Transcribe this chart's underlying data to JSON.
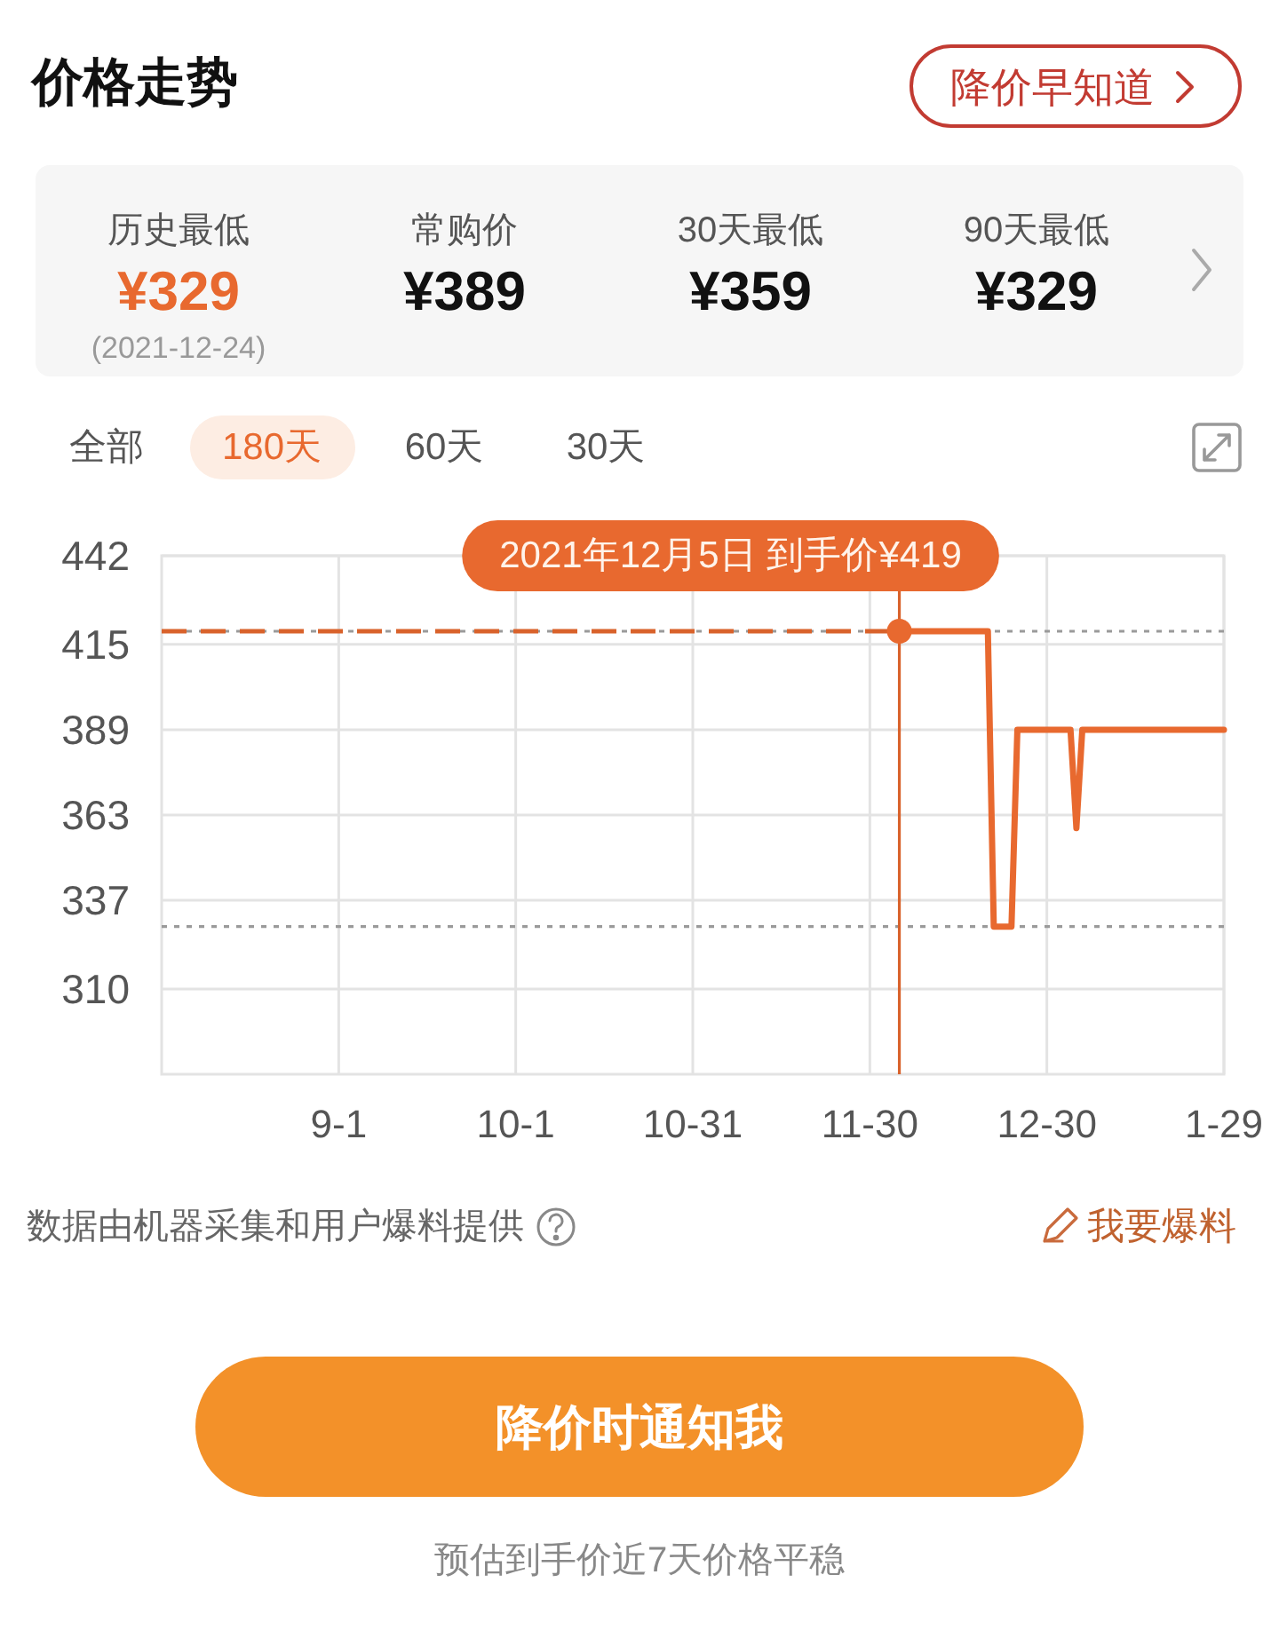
{
  "chart_data": [
    {
      "type": "other",
      "title": "价格走势",
      "categories": [
        "历史最低",
        "常购价",
        "30天最低",
        "90天最低"
      ],
      "value_labels": [
        "¥329",
        "¥389",
        "¥359",
        "¥329"
      ],
      "colors": [
        "#e8692f",
        "#111111",
        "#111111",
        "#111111"
      ],
      "annotations": [
        "降价早知道",
        "(2021-12-24)"
      ]
    },
    {
      "type": "line",
      "x": [
        "2021-12-05",
        "2021-12-20",
        "2021-12-21",
        "2021-12-24",
        "2021-12-25",
        "2022-01-03",
        "2022-01-04",
        "2022-01-05",
        "2022-01-29"
      ],
      "values": [
        419,
        419,
        329,
        329,
        389,
        389,
        359,
        389,
        389
      ],
      "color": "#e8692f",
      "xlim": [
        "2021-08-02",
        "2022-01-29"
      ],
      "xticks": [
        {
          "value": "2021-09-01",
          "label": "9-1"
        },
        {
          "value": "2021-10-01",
          "label": "10-1"
        },
        {
          "value": "2021-10-31",
          "label": "10-31"
        },
        {
          "value": "2021-11-30",
          "label": "11-30"
        },
        {
          "value": "2021-12-30",
          "label": "12-30"
        },
        {
          "value": "2022-01-29",
          "label": "1-29"
        }
      ],
      "ylim": [
        284,
        442
      ],
      "yticks": [
        310,
        337,
        363,
        389,
        415,
        442
      ],
      "grid": true,
      "ref_lines": [
        {
          "axis": "y",
          "value": 419,
          "color": "#9a9a9a",
          "line_style": "dotted"
        },
        {
          "axis": "y",
          "value": 329,
          "color": "#9a9a9a",
          "line_style": "dotted"
        },
        {
          "axis": "x",
          "value": "2021-12-05",
          "color": "#d9622b"
        },
        {
          "axis": "y",
          "value": 419,
          "color": "#d9622b",
          "line_style": "dashed"
        }
      ],
      "annotations": [
        {
          "text": "2021年12月5日 到手价¥419",
          "x": "2021-12-05",
          "y": 419
        },
        "全部",
        "180天",
        "60天",
        "30天",
        "数据由机器采集和用户爆料提供",
        "我要爆料",
        "降价时通知我",
        "预估到手价近7天价格平稳"
      ]
    }
  ]
}
